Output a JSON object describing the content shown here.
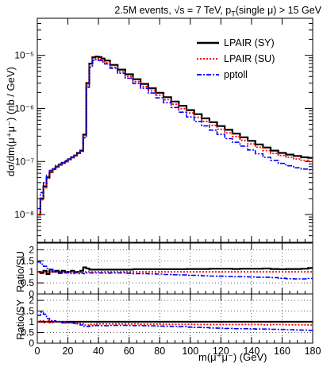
{
  "chart_data": {
    "type": "line",
    "title": "2.5M events, √s = 7 TeV, p_T(single μ) > 15 GeV",
    "title_parts": {
      "pre": "2.5M events, √s = 7 TeV, p",
      "sub": "T",
      "post": "(single μ) > 15 GeV"
    },
    "xlabel": "m(μ⁺μ⁻) (GeV)",
    "xlim": [
      0,
      180
    ],
    "xticks": [
      0,
      20,
      40,
      60,
      80,
      100,
      120,
      140,
      160,
      180
    ],
    "colors": {
      "SY": "#000000",
      "SU": "#ff0000",
      "pptoll": "#0000ff"
    },
    "legend_position": "top-right",
    "legend": [
      "LPAIR (SY)",
      "LPAIR (SU)",
      "pptoll"
    ],
    "main": {
      "ylabel": "dσ/dm(μ⁺μ⁻) (nb / GeV)",
      "yscale": "log",
      "ylim": [
        3e-09,
        5e-05
      ],
      "ytick_labels": [
        {
          "value": 1e-08,
          "label": "10⁻⁸"
        },
        {
          "value": 1e-07,
          "label": "10⁻⁷"
        },
        {
          "value": 1e-06,
          "label": "10⁻⁶"
        },
        {
          "value": 1e-05,
          "label": "10⁻⁵"
        }
      ],
      "x": [
        1,
        3,
        5,
        7,
        9,
        11,
        13,
        15,
        17,
        19,
        21,
        23,
        25,
        27,
        29,
        31,
        33,
        35,
        37,
        39,
        41,
        43,
        45,
        50,
        55,
        60,
        65,
        70,
        75,
        80,
        85,
        90,
        95,
        100,
        105,
        110,
        115,
        120,
        125,
        130,
        135,
        140,
        145,
        150,
        155,
        160,
        165,
        170,
        175,
        179
      ],
      "series": [
        {
          "name": "LPAIR (SY)",
          "values": [
            1e-08,
            2e-08,
            3.4e-08,
            5e-08,
            6.3e-08,
            7.2e-08,
            8e-08,
            8.7e-08,
            9.4e-08,
            1e-07,
            1.1e-07,
            1.2e-07,
            1.3e-07,
            1.45e-07,
            1.6e-07,
            3.2e-07,
            3e-06,
            7e-06,
            9.2e-06,
            9.5e-06,
            9.3e-06,
            8.7e-06,
            8e-06,
            6.6e-06,
            5.4e-06,
            4.4e-06,
            3.55e-06,
            2.9e-06,
            2.4e-06,
            1.97e-06,
            1.63e-06,
            1.35e-06,
            1.12e-06,
            9.3e-07,
            7.8e-07,
            6.5e-07,
            5.5e-07,
            4.65e-07,
            3.95e-07,
            3.35e-07,
            2.85e-07,
            2.45e-07,
            2.1e-07,
            1.83e-07,
            1.6e-07,
            1.45e-07,
            1.35e-07,
            1.27e-07,
            1.2e-07,
            1.17e-07
          ]
        },
        {
          "name": "LPAIR (SU)",
          "values": [
            1e-08,
            1.9e-08,
            3.2e-08,
            4.8e-08,
            6.1e-08,
            7e-08,
            7.8e-08,
            8.5e-08,
            9.2e-08,
            1e-07,
            1.08e-07,
            1.18e-07,
            1.28e-07,
            1.42e-07,
            1.58e-07,
            3e-07,
            2.7e-06,
            6.4e-06,
            8.4e-06,
            8.7e-06,
            8.5e-06,
            8e-06,
            7.3e-06,
            6e-06,
            4.9e-06,
            4e-06,
            3.2e-06,
            2.6e-06,
            2.15e-06,
            1.77e-06,
            1.46e-06,
            1.2e-06,
            9.9e-07,
            8.2e-07,
            6.8e-07,
            5.7e-07,
            4.8e-07,
            4.05e-07,
            3.45e-07,
            2.95e-07,
            2.5e-07,
            2.15e-07,
            1.85e-07,
            1.6e-07,
            1.42e-07,
            1.3e-07,
            1.2e-07,
            1.12e-07,
            1.05e-07,
            1e-07
          ]
        },
        {
          "name": "pptoll",
          "values": [
            1.3e-08,
            2.6e-08,
            4e-08,
            5.5e-08,
            6.8e-08,
            7.5e-08,
            8.5e-08,
            9e-08,
            9.6e-08,
            1.05e-07,
            1.12e-07,
            1.2e-07,
            1.3e-07,
            1.42e-07,
            1.55e-07,
            2.8e-07,
            2.5e-06,
            6e-06,
            8e-06,
            8.3e-06,
            8e-06,
            7.5e-06,
            6.9e-06,
            5.7e-06,
            4.6e-06,
            3.7e-06,
            2.95e-06,
            2.4e-06,
            1.95e-06,
            1.58e-06,
            1.28e-06,
            1.04e-06,
            8.5e-07,
            6.9e-07,
            5.7e-07,
            4.7e-07,
            3.9e-07,
            3.25e-07,
            2.7e-07,
            2.3e-07,
            1.95e-07,
            1.65e-07,
            1.4e-07,
            1.2e-07,
            1.05e-07,
            9.2e-08,
            8.3e-08,
            7.6e-08,
            7.2e-08,
            7e-08
          ]
        }
      ]
    },
    "ratio_su": {
      "ylabel": "Ratio/SU",
      "ylim": [
        0,
        2.3
      ],
      "yticks": [
        0,
        0.5,
        1,
        1.5,
        2
      ],
      "ytick_labels": [
        "0",
        "0.5",
        "1",
        "1.5",
        "2"
      ],
      "x": [
        1,
        3,
        5,
        7,
        9,
        11,
        13,
        15,
        17,
        19,
        21,
        23,
        25,
        27,
        29,
        31,
        33,
        35,
        37,
        39,
        41,
        43,
        45,
        50,
        55,
        60,
        65,
        70,
        75,
        80,
        85,
        90,
        95,
        100,
        105,
        110,
        115,
        120,
        125,
        130,
        135,
        140,
        145,
        150,
        155,
        160,
        165,
        170,
        175,
        179
      ],
      "series": [
        {
          "name": "LPAIR (SY)",
          "values": [
            1.0,
            0.95,
            1.05,
            0.9,
            1.1,
            1.0,
            1.05,
            0.95,
            1.05,
            1.0,
            1.0,
            1.05,
            1.0,
            1.0,
            1.05,
            1.2,
            1.15,
            1.1,
            1.1,
            1.1,
            1.1,
            1.1,
            1.1,
            1.1,
            1.1,
            1.1,
            1.12,
            1.12,
            1.12,
            1.12,
            1.12,
            1.12,
            1.12,
            1.13,
            1.13,
            1.13,
            1.14,
            1.14,
            1.14,
            1.13,
            1.14,
            1.14,
            1.14,
            1.15,
            1.13,
            1.12,
            1.13,
            1.13,
            1.14,
            1.17
          ]
        },
        {
          "name": "LPAIR (SU)",
          "values": [
            1,
            1,
            1,
            1,
            1,
            1,
            1,
            1,
            1,
            1,
            1,
            1,
            1,
            1,
            1,
            1,
            1,
            1,
            1,
            1,
            1,
            1,
            1,
            1,
            1,
            1,
            1,
            1,
            1,
            1,
            1,
            1,
            1,
            1,
            1,
            1,
            1,
            1,
            1,
            1,
            1,
            1,
            1,
            1,
            1,
            1,
            1,
            1,
            1,
            1
          ]
        },
        {
          "name": "pptoll",
          "values": [
            1.45,
            1.35,
            1.25,
            1.15,
            1.1,
            1.05,
            1.0,
            1.0,
            0.95,
            0.95,
            0.95,
            0.92,
            0.95,
            0.92,
            0.95,
            0.92,
            0.95,
            0.95,
            0.95,
            0.95,
            0.95,
            0.95,
            0.94,
            0.95,
            0.95,
            0.93,
            0.92,
            0.92,
            0.91,
            0.9,
            0.88,
            0.87,
            0.86,
            0.84,
            0.84,
            0.82,
            0.81,
            0.8,
            0.79,
            0.78,
            0.78,
            0.77,
            0.76,
            0.75,
            0.74,
            0.71,
            0.69,
            0.68,
            0.68,
            0.7
          ]
        }
      ]
    },
    "ratio_sy": {
      "ylabel": "Ratio/SY",
      "ylim": [
        0,
        2.3
      ],
      "yticks": [
        0,
        0.5,
        1,
        1.5,
        2
      ],
      "ytick_labels": [
        "0",
        "0.5",
        "1",
        "1.5",
        "2"
      ],
      "x": [
        1,
        3,
        5,
        7,
        9,
        11,
        13,
        15,
        17,
        19,
        21,
        23,
        25,
        27,
        29,
        31,
        33,
        35,
        37,
        39,
        41,
        43,
        45,
        50,
        55,
        60,
        65,
        70,
        75,
        80,
        85,
        90,
        95,
        100,
        105,
        110,
        115,
        120,
        125,
        130,
        135,
        140,
        145,
        150,
        155,
        160,
        165,
        170,
        175,
        179
      ],
      "series": [
        {
          "name": "LPAIR (SY)",
          "values": [
            1,
            1,
            1,
            1,
            1,
            1,
            1,
            1,
            1,
            1,
            1,
            1,
            1,
            1,
            1,
            1,
            1,
            1,
            1,
            1,
            1,
            1,
            1,
            1,
            1,
            1,
            1,
            1,
            1,
            1,
            1,
            1,
            1,
            1,
            1,
            1,
            1,
            1,
            1,
            1,
            1,
            1,
            1,
            1,
            1,
            1,
            1,
            1,
            1,
            1
          ]
        },
        {
          "name": "LPAIR (SU)",
          "values": [
            1.0,
            1.05,
            0.95,
            1.05,
            0.95,
            1.0,
            1.0,
            1.0,
            1.0,
            0.95,
            0.95,
            0.95,
            0.92,
            0.95,
            0.9,
            0.85,
            0.85,
            0.88,
            0.88,
            0.9,
            0.9,
            0.9,
            0.9,
            0.9,
            0.9,
            0.9,
            0.9,
            0.89,
            0.89,
            0.89,
            0.88,
            0.88,
            0.88,
            0.88,
            0.87,
            0.87,
            0.87,
            0.87,
            0.87,
            0.87,
            0.87,
            0.87,
            0.87,
            0.86,
            0.87,
            0.87,
            0.86,
            0.86,
            0.86,
            0.85
          ]
        },
        {
          "name": "pptoll",
          "values": [
            1.3,
            1.45,
            1.35,
            1.15,
            1.05,
            1.05,
            1.0,
            1.0,
            0.95,
            0.95,
            0.95,
            0.95,
            0.92,
            0.9,
            0.85,
            0.78,
            0.78,
            0.8,
            0.82,
            0.83,
            0.82,
            0.82,
            0.82,
            0.83,
            0.83,
            0.83,
            0.82,
            0.82,
            0.81,
            0.8,
            0.79,
            0.78,
            0.77,
            0.75,
            0.74,
            0.73,
            0.71,
            0.7,
            0.69,
            0.68,
            0.68,
            0.67,
            0.66,
            0.66,
            0.65,
            0.64,
            0.63,
            0.62,
            0.61,
            0.6
          ]
        }
      ]
    }
  }
}
